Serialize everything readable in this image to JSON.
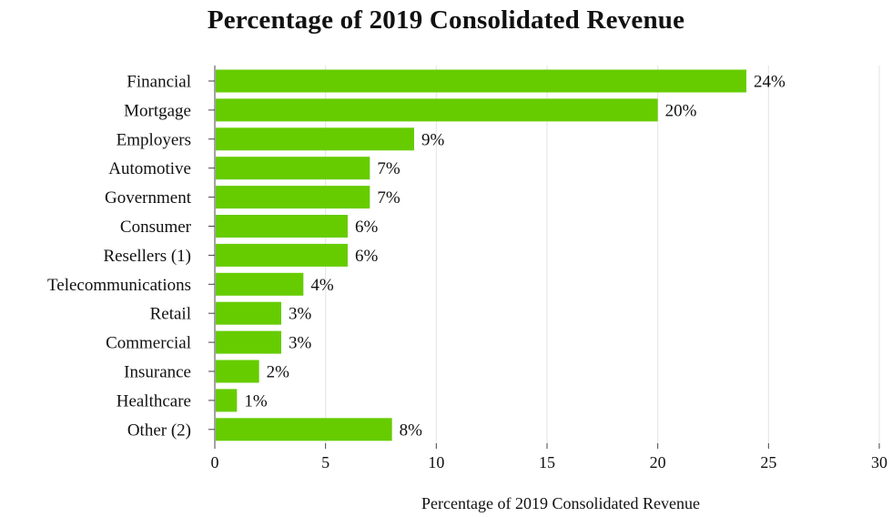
{
  "chart_data": {
    "type": "bar",
    "orientation": "horizontal",
    "title": "Percentage of 2019 Consolidated Revenue",
    "xlabel": "Percentage of 2019 Consolidated Revenue",
    "ylabel": "",
    "xlim": [
      0,
      30
    ],
    "xticks": [
      0,
      5,
      10,
      15,
      20,
      25,
      30
    ],
    "grid": true,
    "bar_color": "#66cc00",
    "categories": [
      "Financial",
      "Mortgage",
      "Employers",
      "Automotive",
      "Government",
      "Consumer",
      "Resellers (1)",
      "Telecommunications",
      "Retail",
      "Commercial",
      "Insurance",
      "Healthcare",
      "Other (2)"
    ],
    "values": [
      24,
      20,
      9,
      7,
      7,
      6,
      6,
      4,
      3,
      3,
      2,
      1,
      8
    ],
    "value_labels": [
      "24%",
      "20%",
      "9%",
      "7%",
      "7%",
      "6%",
      "6%",
      "4%",
      "3%",
      "3%",
      "2%",
      "1%",
      "8%"
    ]
  }
}
